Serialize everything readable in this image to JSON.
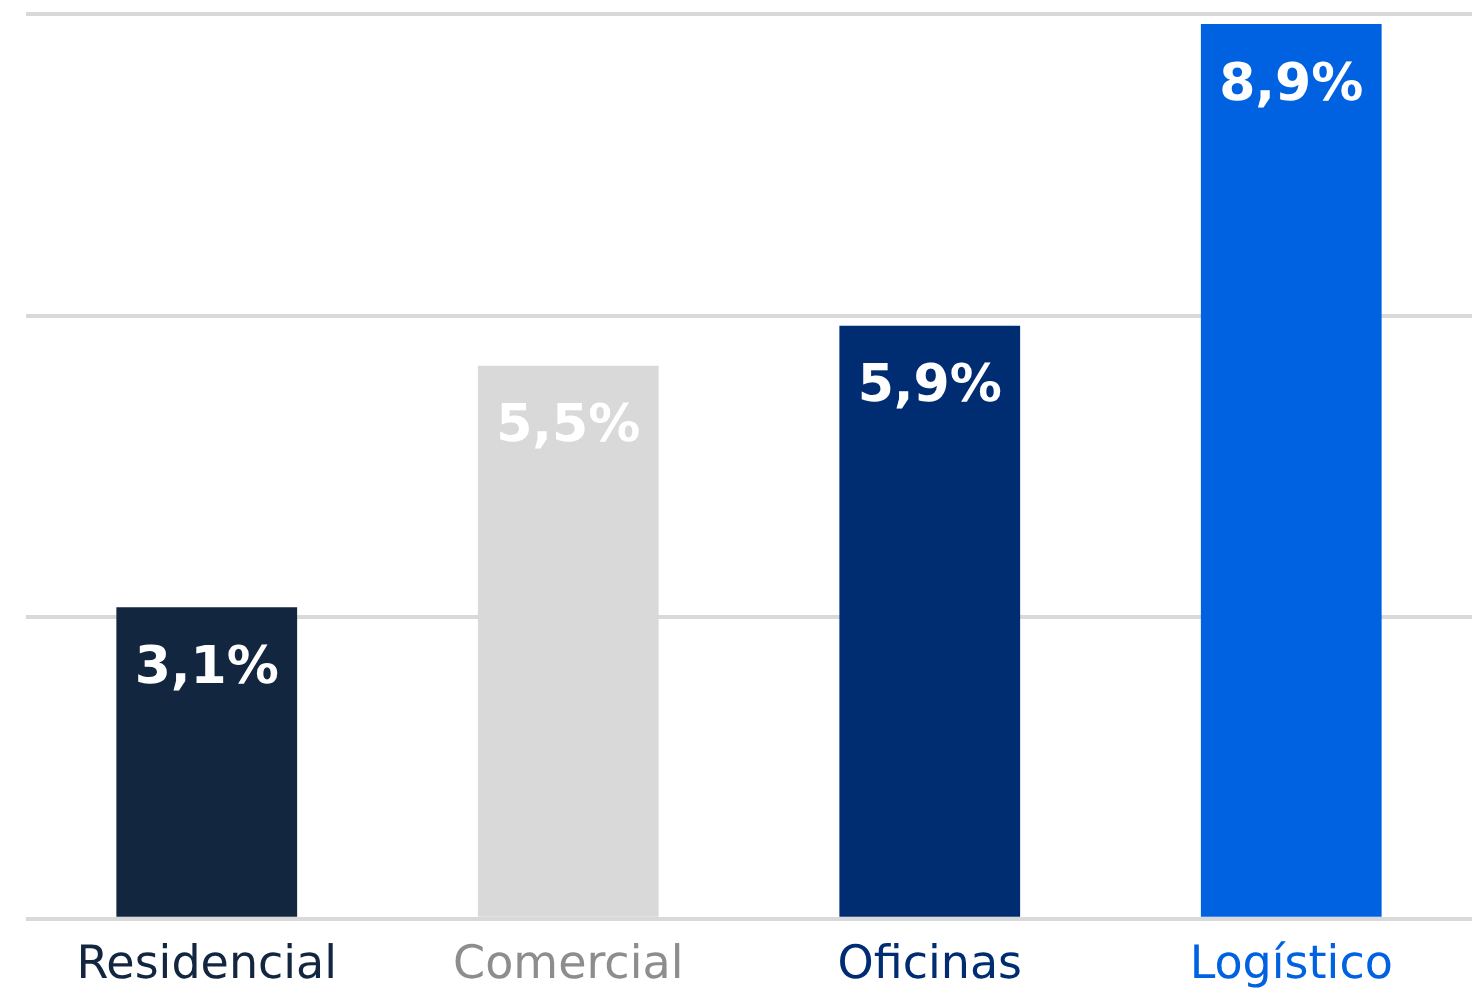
{
  "chart_data": {
    "type": "bar",
    "categories": [
      "Residencial",
      "Comercial",
      "Oficinas",
      "Logístico"
    ],
    "values": [
      3.1,
      5.5,
      5.9,
      8.9
    ],
    "colors": [
      "#13263f",
      "#d9d9d9",
      "#002d72",
      "#0062e0"
    ],
    "value_labels": [
      "3,1%",
      "5,5%",
      "5,9%",
      "8,9%"
    ],
    "ylim": [
      0,
      9
    ],
    "yticks": [
      {
        "value": 0,
        "label": null
      },
      {
        "value": 3,
        "label": null
      },
      {
        "value": 6,
        "label": null
      },
      {
        "value": 9,
        "label": null
      }
    ],
    "grid": "y",
    "tick_labels": "x",
    "legend": false
  }
}
